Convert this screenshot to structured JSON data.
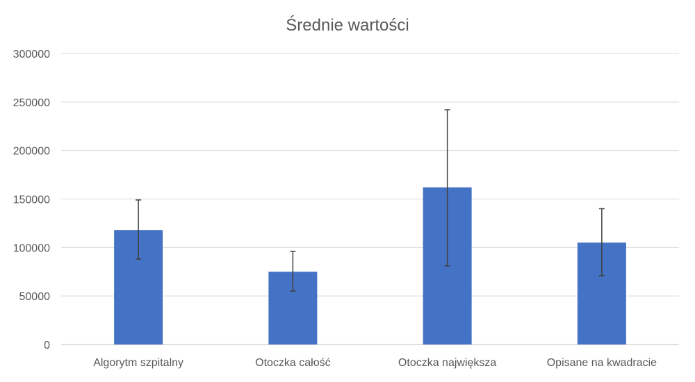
{
  "colors": {
    "bar": "#4472C4",
    "grid": "#D9D9D9",
    "text": "#595959",
    "error_bar": "#404040"
  },
  "chart_data": {
    "type": "bar",
    "title": "Średnie wartości",
    "categories": [
      "Algorytm szpitalny",
      "Otoczka całość",
      "Otoczka największa",
      "Opisane na kwadracie"
    ],
    "series": [
      {
        "values": [
          118000,
          75000,
          162000,
          105000
        ],
        "error_low": [
          88000,
          55000,
          81000,
          71000
        ],
        "error_high": [
          149000,
          96000,
          242000,
          140000
        ]
      }
    ],
    "ylim": [
      0,
      300000
    ],
    "yticks": [
      "0",
      "50000",
      "100000",
      "150000",
      "200000",
      "250000",
      "300000"
    ],
    "grid": true,
    "legend": "none"
  }
}
